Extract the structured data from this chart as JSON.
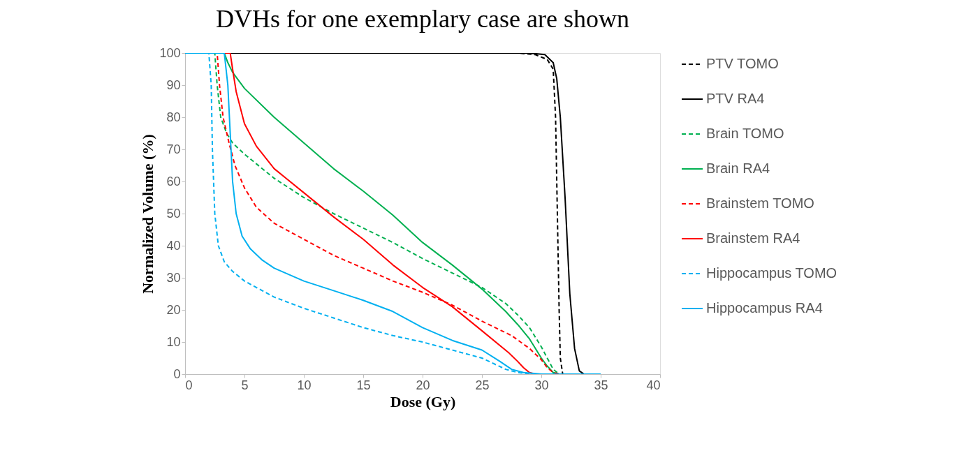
{
  "chart_data": {
    "type": "line",
    "title": "DVHs for one exemplary case are shown",
    "xlabel": "Dose (Gy)",
    "ylabel": "Normalized Volume (%)",
    "xlim": [
      0,
      40
    ],
    "xticks": [
      0,
      5,
      10,
      15,
      20,
      25,
      30,
      35,
      40
    ],
    "ylim": [
      0,
      100
    ],
    "yticks": [
      0,
      10,
      20,
      30,
      40,
      50,
      60,
      70,
      80,
      90,
      100
    ],
    "grid": false,
    "legend": "right",
    "marker": "none",
    "series": [
      {
        "name": "PTV TOMO",
        "color": "#000000",
        "line_style": "dashed",
        "x": [
          0,
          28,
          29.5,
          30.5,
          31,
          31.2,
          31.35,
          31.5,
          31.6,
          31.8,
          35
        ],
        "values": [
          100,
          100,
          99.5,
          98,
          95,
          80,
          50,
          20,
          5,
          0,
          0
        ]
      },
      {
        "name": "PTV RA4",
        "color": "#000000",
        "line_style": "solid",
        "x": [
          0,
          29,
          30.3,
          31,
          31.3,
          31.6,
          32,
          32.4,
          32.8,
          33.2,
          33.6,
          35
        ],
        "values": [
          100,
          100,
          99.5,
          97,
          92,
          80,
          55,
          25,
          8,
          1,
          0,
          0
        ]
      },
      {
        "name": "Brain TOMO",
        "color": "#00b050",
        "line_style": "dashed",
        "x": [
          0,
          2.5,
          2.7,
          3,
          3.5,
          4,
          5,
          7.5,
          10,
          12.5,
          15,
          17.5,
          20,
          22.5,
          25,
          27,
          28,
          29,
          30,
          30.5,
          31,
          31.5,
          35
        ],
        "values": [
          100,
          100,
          90,
          80,
          75,
          72,
          68.5,
          61,
          55,
          50,
          45.5,
          41,
          36,
          31.5,
          27,
          22,
          18.5,
          14.5,
          8.5,
          5,
          1.5,
          0,
          0
        ]
      },
      {
        "name": "Brain RA4",
        "color": "#00b050",
        "line_style": "solid",
        "x": [
          0,
          3.3,
          3.6,
          4,
          5,
          7.5,
          10,
          12.5,
          15,
          17.5,
          20,
          22.5,
          25,
          27,
          28,
          29,
          30,
          30.5,
          31,
          31.5,
          35
        ],
        "values": [
          100,
          100,
          97,
          94,
          89,
          80,
          72,
          64,
          57,
          49.5,
          41,
          34,
          26.5,
          19.5,
          15.5,
          11,
          5,
          2.5,
          0.5,
          0,
          0
        ]
      },
      {
        "name": "Brainstem TOMO",
        "color": "#ff0000",
        "line_style": "dashed",
        "x": [
          0,
          2.7,
          2.9,
          3.2,
          3.7,
          4.2,
          5,
          6,
          7.5,
          10,
          12.5,
          15,
          17.5,
          20,
          22.5,
          25,
          27.5,
          29,
          30,
          30.5,
          31,
          31.5,
          35
        ],
        "values": [
          100,
          100,
          90,
          80,
          72,
          65,
          58,
          52,
          47,
          42,
          37,
          33,
          29,
          25.5,
          21.5,
          16.5,
          12,
          8,
          4.5,
          2,
          0.5,
          0,
          0
        ]
      },
      {
        "name": "Brainstem RA4",
        "color": "#ff0000",
        "line_style": "solid",
        "x": [
          0,
          3.8,
          4,
          4.3,
          5,
          6,
          7.5,
          10,
          12.5,
          15,
          17.5,
          20,
          22.5,
          25,
          27.3,
          28,
          28.5,
          29,
          29.5,
          35
        ],
        "values": [
          100,
          100,
          95,
          88,
          78,
          71,
          64,
          56.5,
          49,
          42,
          34,
          27,
          21,
          13.5,
          6.5,
          4,
          2,
          0.5,
          0,
          0
        ]
      },
      {
        "name": "Hippocampus TOMO",
        "color": "#00b0f0",
        "line_style": "dashed",
        "x": [
          0,
          2,
          2.2,
          2.3,
          2.5,
          2.8,
          3.3,
          4,
          5,
          7.5,
          10,
          12.5,
          15,
          17.5,
          20,
          22.5,
          25,
          27,
          28,
          29,
          35
        ],
        "values": [
          100,
          100,
          90,
          70,
          50,
          40,
          35,
          32,
          29,
          24,
          20.5,
          17.5,
          14.5,
          12,
          10,
          7.5,
          5,
          1.5,
          0.5,
          0,
          0
        ]
      },
      {
        "name": "Hippocampus  RA4",
        "color": "#00b0f0",
        "line_style": "solid",
        "x": [
          0,
          3.3,
          3.6,
          3.8,
          4,
          4.3,
          4.8,
          5.5,
          6.5,
          7.5,
          10,
          12.5,
          15,
          17.5,
          20,
          22.5,
          25,
          26.5,
          27.5,
          28.5,
          30,
          35
        ],
        "values": [
          100,
          100,
          90,
          75,
          60,
          50,
          43,
          39,
          35.5,
          33,
          29,
          26,
          23,
          19.5,
          14.5,
          10.5,
          7.5,
          4,
          1.5,
          0.5,
          0,
          0
        ]
      }
    ]
  }
}
